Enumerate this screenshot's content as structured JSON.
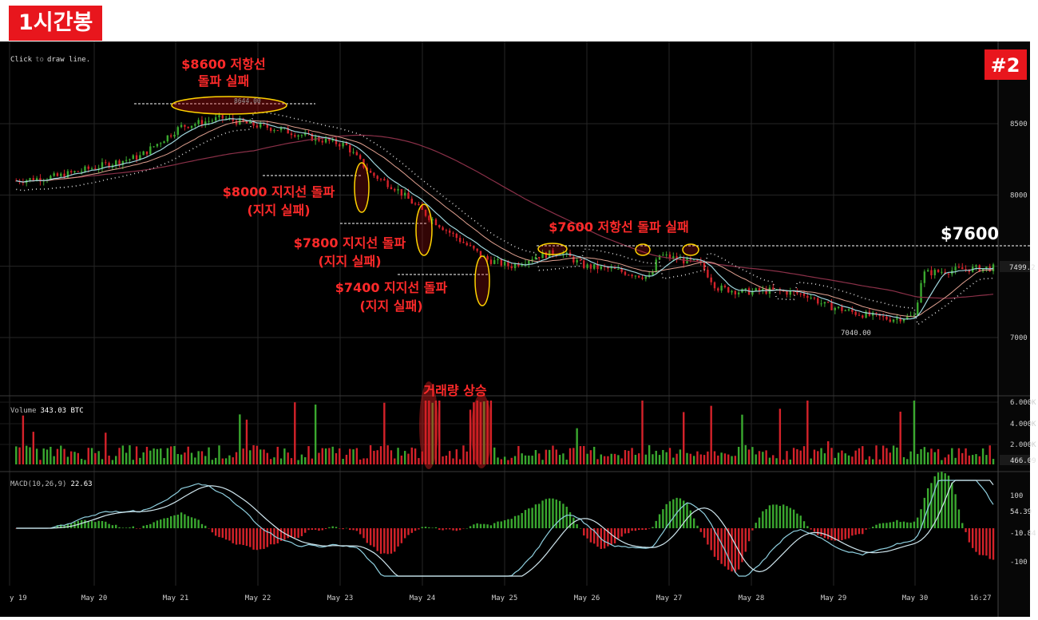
{
  "title_badge": "1시간봉",
  "chart_number": "#2",
  "hint": {
    "click": "Click",
    "to": "to",
    "draw": "draw line."
  },
  "price_labels": {
    "high": "8644.00",
    "low": "7040.00",
    "last": "7499.2",
    "level_7600": "$7600"
  },
  "annotations": {
    "r8600": [
      "$8600 저항선",
      "돌파 실패"
    ],
    "s8000": [
      "$8000 지지선 돌파",
      "(지지 실패)"
    ],
    "s7800": [
      "$7800 지지선 돌파",
      "(지지 실패)"
    ],
    "s7400": [
      "$7400 지지선 돌파",
      "(지지 실패)"
    ],
    "r7600": "$7600 저항선 돌파 실패",
    "volume_up": "거래량 상승"
  },
  "volume_label": {
    "name": "Volume",
    "value": "343.03 BTC",
    "last": "466.09"
  },
  "macd_label": {
    "name": "MACD(10,26,9)",
    "value": "22.63",
    "last1": "54.39",
    "last2": "-10.84"
  },
  "colors": {
    "background": "#000000",
    "up": "#3aa82f",
    "down": "#d4222a",
    "annotation": "#ff2a2a",
    "highlight": "#ffd400",
    "ma_fast": "#9fd6de",
    "ma_mid": "#e0a090",
    "ma_slow": "#8a3048",
    "dots": "#d8d8d8"
  },
  "chart_data": [
    {
      "type": "candlestick",
      "panel": "price",
      "x_ticks": [
        "y 19",
        "May 20",
        "May 21",
        "May 22",
        "May 23",
        "May 24",
        "May 25",
        "May 26",
        "May 27",
        "May 28",
        "May 29",
        "May 30",
        "16:27"
      ],
      "y_ticks": [
        8500,
        8000,
        7500,
        7000
      ],
      "ylim": [
        6980,
        8710
      ],
      "approx_close_path": [
        [
          0,
          8100
        ],
        [
          0.5,
          8130
        ],
        [
          1.0,
          8200
        ],
        [
          1.5,
          8270
        ],
        [
          2.0,
          8480
        ],
        [
          2.5,
          8540
        ],
        [
          2.8,
          8500
        ],
        [
          3.2,
          8460
        ],
        [
          3.6,
          8400
        ],
        [
          4.0,
          8350
        ],
        [
          4.3,
          8150
        ],
        [
          4.6,
          8050
        ],
        [
          5.0,
          7850
        ],
        [
          5.3,
          7720
        ],
        [
          5.7,
          7550
        ],
        [
          6.0,
          7500
        ],
        [
          6.3,
          7570
        ],
        [
          6.6,
          7600
        ],
        [
          6.9,
          7500
        ],
        [
          7.2,
          7480
        ],
        [
          7.7,
          7420
        ],
        [
          7.8,
          7580
        ],
        [
          8.1,
          7540
        ],
        [
          8.3,
          7520
        ],
        [
          8.5,
          7350
        ],
        [
          8.8,
          7320
        ],
        [
          9.2,
          7330
        ],
        [
          9.6,
          7300
        ],
        [
          9.8,
          7230
        ],
        [
          10.2,
          7170
        ],
        [
          10.6,
          7130
        ],
        [
          10.9,
          7150
        ],
        [
          11.0,
          7450
        ],
        [
          11.5,
          7480
        ],
        [
          11.9,
          7490
        ]
      ],
      "high_marker": 8644.0,
      "low_marker": 7040.0,
      "last_price": 7499.2,
      "horizontal_levels": [
        8644,
        8130,
        7800,
        7440,
        7660
      ]
    },
    {
      "type": "bar",
      "panel": "volume",
      "series_label": "Volume",
      "y_ticks": [
        "6.000K",
        "4.000K",
        "2.000K"
      ],
      "last_value": "466.09"
    },
    {
      "type": "histogram",
      "panel": "macd",
      "series_label": "MACD(10,26,9)",
      "y_ticks": [
        100,
        -100
      ],
      "last_values": [
        54.39,
        -10.84
      ]
    }
  ]
}
